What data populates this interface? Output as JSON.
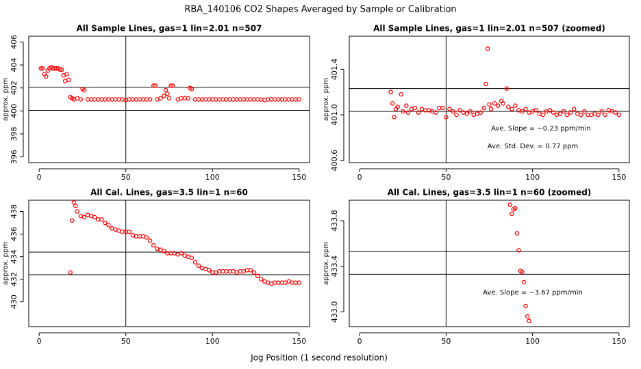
{
  "title": "RBA_140106  CO2 Shapes Averaged by Sample or Calibration",
  "xlabel": "Jog Position (1 second resolution)",
  "chart_data": [
    {
      "type": "scatter",
      "title": "All Sample Lines, gas=1 lin=2.01 n=507",
      "ylabel": "approx. ppm",
      "color": "#ff0000",
      "xlim": [
        -6,
        156
      ],
      "ylim": [
        395.5,
        406.5
      ],
      "xticks": [
        0,
        50,
        100,
        150
      ],
      "yticks": [
        396,
        398,
        400,
        402,
        404,
        406
      ],
      "hlines": [
        402.07,
        400.05
      ],
      "vlines": [
        50
      ],
      "x": [
        1,
        2,
        3,
        4,
        5,
        6,
        7,
        8,
        9,
        10,
        11,
        12,
        13,
        14,
        15,
        16,
        17,
        18,
        19,
        20,
        22,
        24,
        25,
        26,
        28,
        30,
        32,
        34,
        36,
        38,
        40,
        42,
        44,
        46,
        48,
        50,
        52,
        54,
        56,
        58,
        60,
        62,
        64,
        66,
        67,
        68,
        70,
        72,
        73,
        74,
        75,
        76,
        77,
        80,
        82,
        84,
        86,
        87,
        88,
        90,
        92,
        94,
        96,
        98,
        100,
        102,
        104,
        106,
        108,
        110,
        112,
        114,
        116,
        118,
        120,
        122,
        124,
        126,
        128,
        130,
        132,
        134,
        136,
        138,
        140,
        142,
        144,
        146,
        148,
        150
      ],
      "y": [
        403.7,
        403.7,
        403.2,
        403.0,
        403.5,
        403.7,
        403.8,
        403.7,
        403.7,
        403.7,
        403.7,
        403.6,
        403.6,
        403.1,
        402.6,
        403.2,
        402.7,
        401.2,
        401.1,
        401.0,
        401.1,
        401.0,
        401.9,
        401.8,
        401.0,
        401.0,
        401.0,
        401.0,
        401.0,
        401.0,
        401.0,
        401.0,
        401.0,
        401.0,
        401.0,
        400.95,
        401.0,
        401.0,
        401.0,
        401.0,
        401.0,
        401.0,
        401.0,
        402.2,
        402.2,
        401.0,
        401.1,
        401.3,
        401.8,
        401.5,
        401.1,
        402.2,
        402.2,
        401.0,
        401.1,
        401.1,
        401.1,
        402.0,
        401.9,
        401.0,
        401.0,
        401.0,
        401.0,
        401.0,
        401.0,
        401.0,
        401.0,
        401.0,
        401.0,
        401.0,
        401.0,
        401.0,
        401.0,
        401.0,
        401.0,
        401.0,
        401.0,
        401.0,
        401.0,
        400.95,
        401.0,
        401.0,
        401.0,
        401.0,
        401.0,
        401.0,
        401.0,
        401.0,
        401.0,
        401.0
      ],
      "annotations": []
    },
    {
      "type": "scatter",
      "title": "All Sample Lines, gas=1 lin=2.01 n=507 (zoomed)",
      "ylabel": "approx. ppm",
      "color": "#ff0000",
      "xlim": [
        -6,
        156
      ],
      "ylim": [
        400.58,
        401.69
      ],
      "xticks": [
        0,
        50,
        100,
        150
      ],
      "yticks": [
        400.6,
        {
          "value": 401,
          "label": "401.0"
        },
        401.4
      ],
      "hlines": [
        401.23,
        401.03
      ],
      "vlines": [
        50
      ],
      "x": [
        18,
        19,
        20,
        21,
        22,
        24,
        25,
        27,
        28,
        30,
        32,
        34,
        36,
        38,
        40,
        42,
        44,
        46,
        48,
        50,
        52,
        54,
        56,
        58,
        60,
        62,
        64,
        66,
        68,
        70,
        72,
        73,
        74,
        75,
        76,
        78,
        80,
        82,
        83,
        85,
        86,
        88,
        90,
        92,
        94,
        96,
        98,
        100,
        102,
        104,
        106,
        108,
        110,
        112,
        114,
        116,
        118,
        120,
        122,
        124,
        126,
        128,
        130,
        132,
        134,
        136,
        138,
        140,
        142,
        144,
        146,
        148,
        150
      ],
      "y": [
        401.2,
        401.1,
        400.98,
        401.05,
        401.07,
        401.18,
        401.03,
        401.08,
        401.02,
        401.05,
        401.06,
        401.02,
        401.05,
        401.04,
        401.04,
        401.03,
        401.02,
        401.06,
        401.06,
        400.98,
        401.05,
        401.03,
        401.0,
        401.04,
        401.02,
        401.01,
        401.03,
        401.0,
        401.01,
        401.02,
        401.06,
        401.27,
        401.58,
        401.09,
        401.05,
        401.1,
        401.08,
        401.12,
        401.1,
        401.23,
        401.07,
        401.05,
        401.08,
        401.04,
        401.03,
        401.05,
        401.02,
        401.03,
        401.04,
        401.01,
        401.0,
        401.03,
        401.04,
        401.02,
        401.0,
        401.01,
        401.03,
        401.0,
        401.02,
        401.05,
        401.01,
        401.0,
        401.03,
        401.0,
        401.0,
        401.01,
        401.0,
        401.03,
        401.0,
        401.04,
        401.03,
        401.02,
        401.0
      ],
      "annotations": [
        "Ave. Slope =  −0.23  ppm/min",
        "Ave. Std. Dev. =  0.77  ppm"
      ]
    },
    {
      "type": "scatter",
      "title": "All Cal. Lines, gas=3.5 lin=1 n=60",
      "ylabel": "approx. ppm",
      "color": "#ff0000",
      "xlim": [
        -6,
        156
      ],
      "ylim": [
        427.8,
        439.0
      ],
      "xticks": [
        0,
        50,
        100,
        150
      ],
      "yticks": [
        430,
        432,
        434,
        436,
        438
      ],
      "hlines": [
        434.4,
        432.4
      ],
      "vlines": [
        50
      ],
      "x": [
        18,
        19,
        20,
        21,
        22,
        24,
        26,
        28,
        30,
        32,
        34,
        36,
        38,
        40,
        42,
        44,
        46,
        48,
        50,
        52,
        54,
        56,
        58,
        60,
        62,
        64,
        66,
        68,
        70,
        72,
        74,
        76,
        78,
        80,
        82,
        84,
        86,
        88,
        90,
        92,
        94,
        96,
        98,
        100,
        102,
        104,
        106,
        108,
        110,
        112,
        114,
        116,
        118,
        120,
        122,
        124,
        126,
        128,
        130,
        132,
        134,
        136,
        138,
        140,
        142,
        144,
        146,
        148,
        150
      ],
      "y": [
        432.6,
        437.2,
        438.8,
        438.5,
        438.0,
        437.6,
        437.5,
        437.7,
        437.6,
        437.5,
        437.3,
        437.3,
        437.0,
        436.8,
        436.5,
        436.4,
        436.3,
        436.2,
        436.2,
        436.2,
        435.9,
        435.8,
        435.8,
        435.8,
        435.7,
        435.4,
        435.0,
        434.7,
        434.6,
        434.5,
        434.3,
        434.3,
        434.3,
        434.2,
        434.3,
        434.1,
        434.0,
        433.9,
        433.5,
        433.2,
        433.0,
        432.9,
        432.8,
        432.6,
        432.6,
        432.7,
        432.7,
        432.7,
        432.7,
        432.7,
        432.6,
        432.7,
        432.7,
        432.8,
        432.8,
        432.6,
        432.3,
        432.0,
        431.8,
        431.7,
        431.6,
        431.7,
        431.7,
        431.7,
        431.7,
        431.8,
        431.7,
        431.7,
        431.7
      ],
      "annotations": []
    },
    {
      "type": "scatter",
      "title": "All Cal. Lines, gas=3.5 lin=1 n=60 (zoomed)",
      "ylabel": "approx. ppm",
      "color": "#ff0000",
      "xlim": [
        -6,
        156
      ],
      "ylim": [
        432.87,
        433.98
      ],
      "xticks": [
        0,
        50,
        100,
        150
      ],
      "yticks": [
        {
          "value": 433,
          "label": "433.0"
        },
        433.4,
        433.8
      ],
      "hlines": [
        433.53,
        433.33
      ],
      "vlines": [
        50
      ],
      "x": [
        87,
        88,
        89,
        90,
        91,
        92,
        93,
        94,
        95,
        96,
        97,
        98
      ],
      "y": [
        433.94,
        433.86,
        433.9,
        433.91,
        433.69,
        433.54,
        433.36,
        433.35,
        433.26,
        433.05,
        432.96,
        432.92
      ],
      "annotations": [
        "Ave. Slope =  −3.67  ppm/min"
      ]
    }
  ]
}
